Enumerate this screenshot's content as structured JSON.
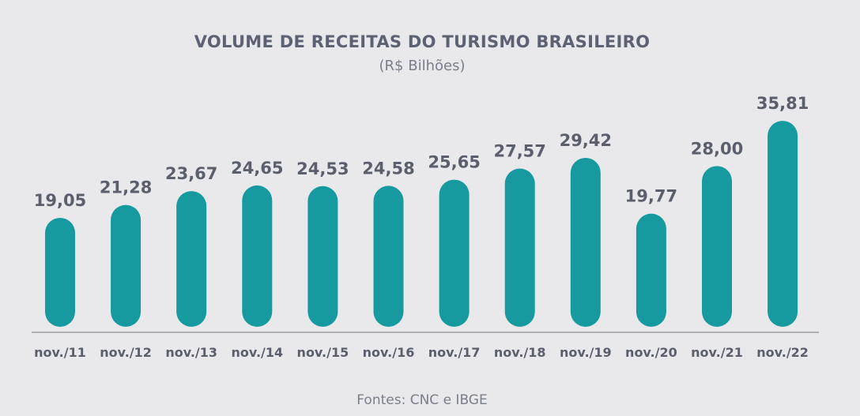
{
  "chart_data": {
    "type": "bar",
    "title": "VOLUME DE RECEITAS DO TURISMO BRASILEIRO",
    "subtitle": "(R$ Bilhões)",
    "categories": [
      "nov./11",
      "nov./12",
      "nov./13",
      "nov./14",
      "nov./15",
      "nov./16",
      "nov./17",
      "nov./18",
      "nov./19",
      "nov./20",
      "nov./21",
      "nov./22"
    ],
    "values": [
      19.05,
      21.28,
      23.67,
      24.65,
      24.53,
      24.58,
      25.65,
      27.57,
      29.42,
      19.77,
      28.0,
      35.81
    ],
    "value_labels": [
      "19,05",
      "21,28",
      "23,67",
      "24,65",
      "24,53",
      "24,58",
      "25,65",
      "27,57",
      "29,42",
      "19,77",
      "28,00",
      "35,81"
    ],
    "ylim": [
      0,
      36
    ],
    "bar_color": "#16999f",
    "source": "Fontes: CNC e IBGE"
  }
}
